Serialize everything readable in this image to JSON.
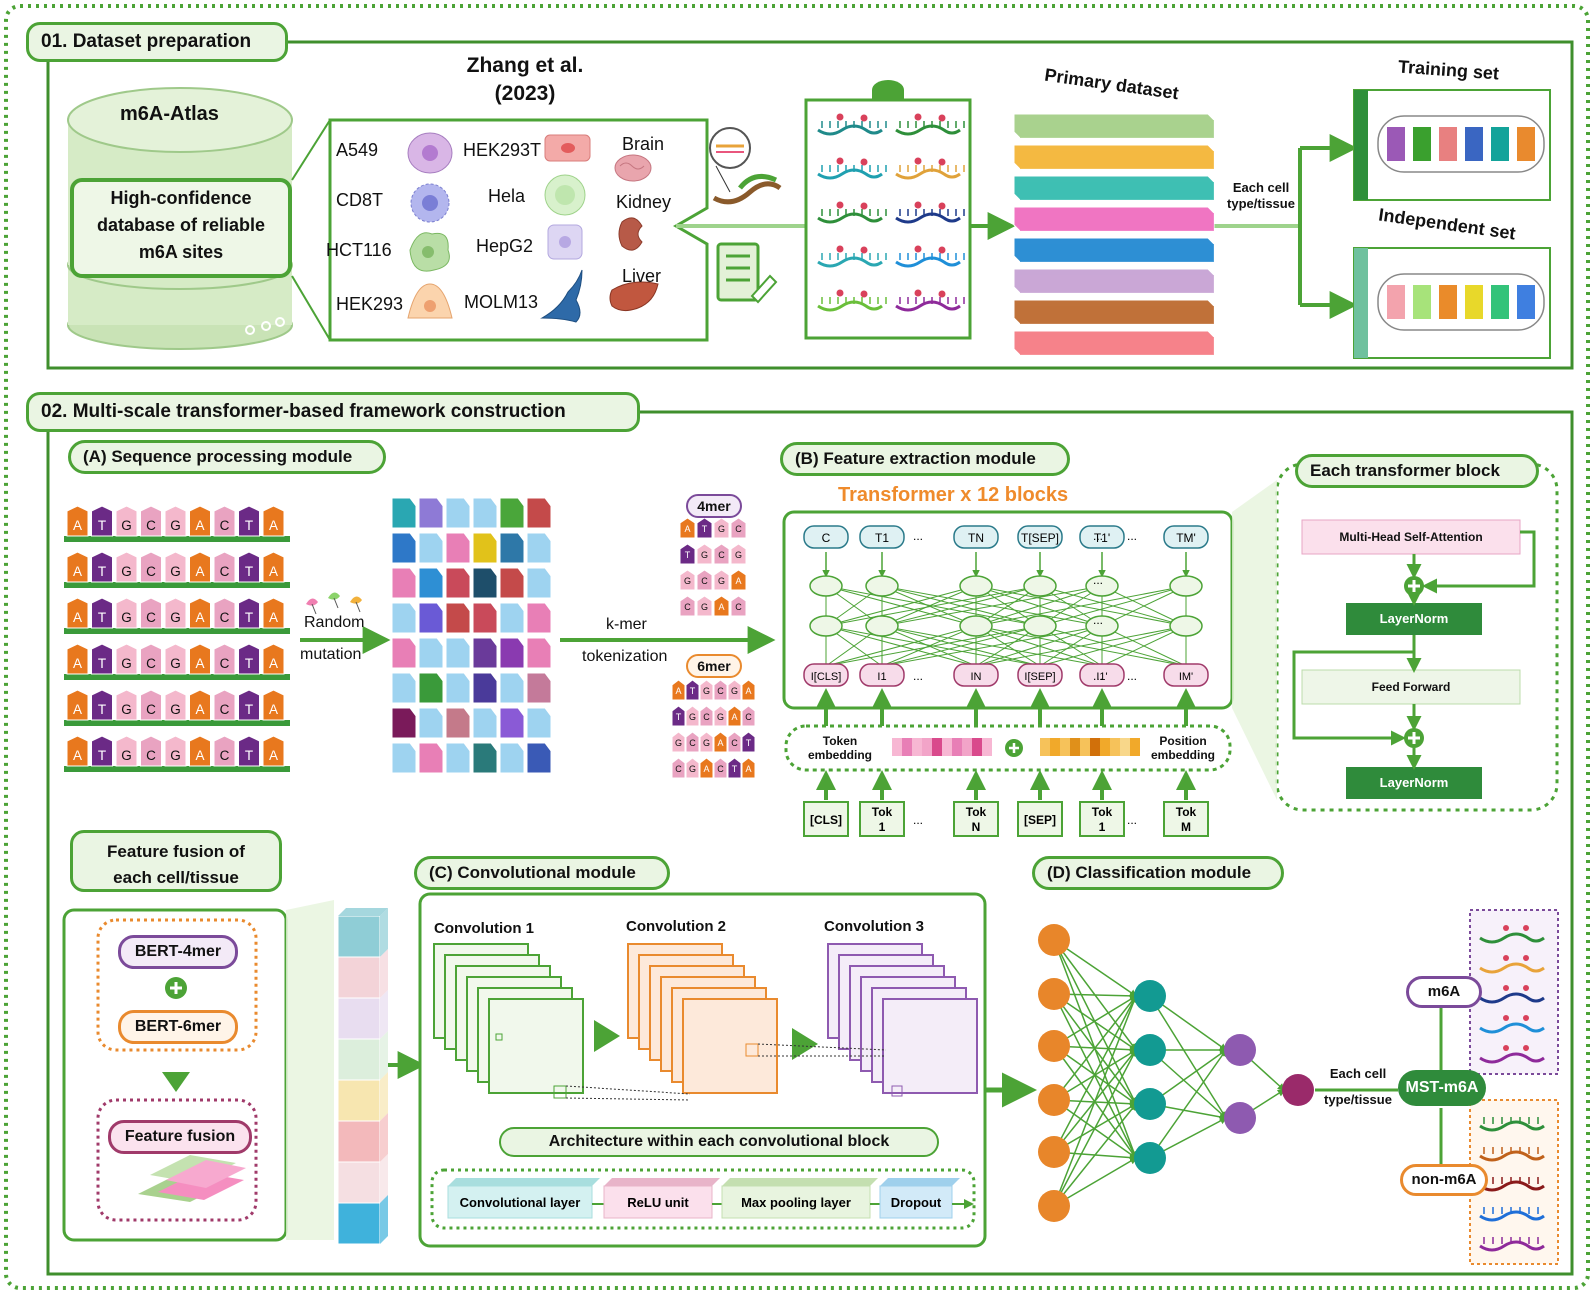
{
  "section1": {
    "title": "01. Dataset preparation",
    "atlas": "m6A-Atlas",
    "atlas_desc": [
      "High-confidence",
      "database of reliable",
      "m6A sites"
    ],
    "source": [
      "Zhang et al.",
      "(2023)"
    ],
    "cell_lines": [
      "A549",
      "CD8T",
      "HCT116",
      "HEK293",
      "HEK293T",
      "Hela",
      "HepG2",
      "MOLM13"
    ],
    "tissues": [
      "Brain",
      "Kidney",
      "Liver"
    ],
    "primary_dataset": "Primary dataset",
    "split_label": [
      "Each cell",
      "type/tissue"
    ],
    "training_set": "Training set",
    "independent_set": "Independent set",
    "layer_colors": [
      "#a9d18e",
      "#f4b942",
      "#3fbfb3",
      "#f075c2",
      "#2e8fd4",
      "#c9a7d6",
      "#c0723a",
      "#f5828a"
    ],
    "training_colors": [
      "#9b59b6",
      "#3aa02e",
      "#e88080",
      "#3a66c2",
      "#13a39a",
      "#e98a2e"
    ],
    "independent_colors": [
      "#f3a3ad",
      "#a7e37a",
      "#ea8b2a",
      "#e8d82a",
      "#33c37a",
      "#3f7fe0"
    ]
  },
  "section2": {
    "title": "02. Multi-scale transformer-based framework construction",
    "moduleA": {
      "title": "(A) Sequence processing module",
      "sequence": [
        "A",
        "T",
        "G",
        "C",
        "G",
        "A",
        "C",
        "T",
        "A"
      ],
      "random_mutation": [
        "Random",
        "mutation"
      ],
      "kmer_tokenization": [
        "k-mer",
        "tokenization"
      ],
      "kmer4": "4mer",
      "kmer6": "6mer",
      "kmer4_rows": [
        [
          "A",
          "T",
          "G",
          "C"
        ],
        [
          "T",
          "G",
          "C",
          "G"
        ],
        [
          "G",
          "C",
          "G",
          "A"
        ],
        [
          "C",
          "G",
          "A",
          "C"
        ]
      ],
      "kmer6_rows": [
        [
          "A",
          "T",
          "G",
          "C",
          "G",
          "A"
        ],
        [
          "T",
          "G",
          "C",
          "G",
          "A",
          "C"
        ],
        [
          "G",
          "C",
          "G",
          "A",
          "C",
          "T"
        ],
        [
          "C",
          "G",
          "A",
          "C",
          "T",
          "A"
        ]
      ]
    },
    "moduleB": {
      "title": "(B) Feature extraction module",
      "subtitle": "Transformer x 12 blocks",
      "outputs": [
        "C",
        "T1",
        "TN",
        "T[SEP]",
        "T1'",
        "TM'"
      ],
      "inputs": [
        "I[CLS]",
        "I1",
        "IN",
        "I[SEP]",
        "I1'",
        "IM'"
      ],
      "tokens": [
        "[CLS]",
        "Tok 1",
        "Tok N",
        "[SEP]",
        "Tok 1",
        "Tok M"
      ],
      "ellipsis": "...",
      "token_embedding": [
        "Token",
        "embedding"
      ],
      "position_embedding": [
        "Position",
        "embedding"
      ]
    },
    "block": {
      "title": "Each transformer block",
      "attention": "Multi-Head Self-Attention",
      "layernorm": "LayerNorm",
      "feedforward": "Feed Forward"
    },
    "fusion": {
      "title": [
        "Feature fusion of",
        "each cell/tissue"
      ],
      "bert4": "BERT-4mer",
      "bert6": "BERT-6mer",
      "fusion_label": "Feature fusion"
    },
    "moduleC": {
      "title": "(C) Convolutional module",
      "conv": [
        "Convolution 1",
        "Convolution 2",
        "Convolution 3"
      ],
      "arch": "Architecture within each convolutional block",
      "layers": [
        "Convolutional layer",
        "ReLU unit",
        "Max pooling layer",
        "Dropout"
      ]
    },
    "moduleD": {
      "title": "(D) Classification module",
      "each_cell": [
        "Each cell",
        "type/tissue"
      ],
      "model": "MST-m6A",
      "pos": "m6A",
      "neg": "non-m6A"
    }
  }
}
